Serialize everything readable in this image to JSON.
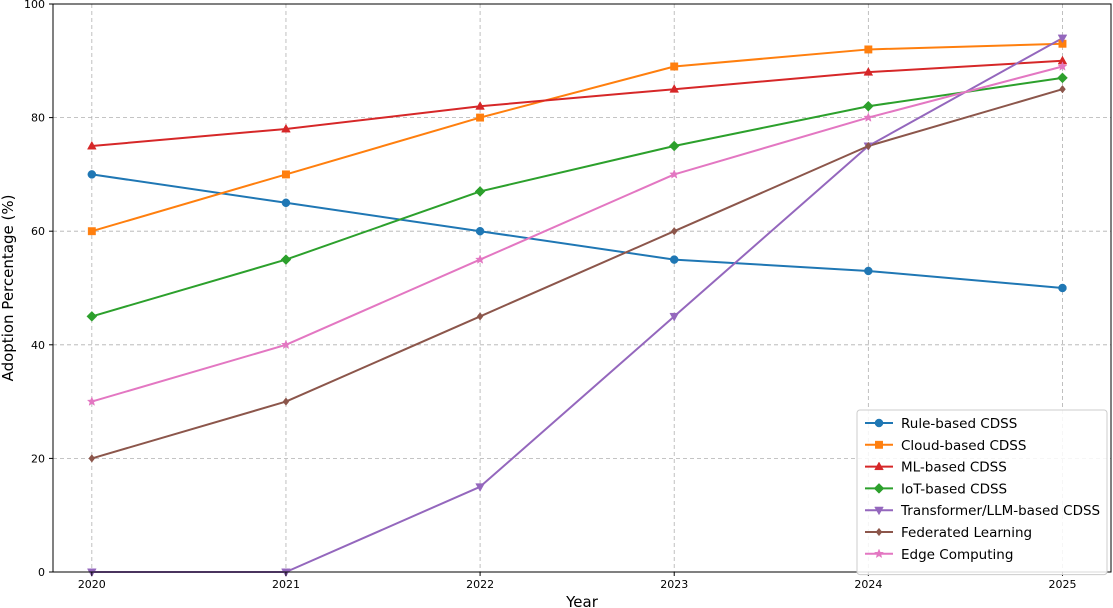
{
  "chart_data": {
    "type": "line",
    "title": "",
    "xlabel": "Year",
    "ylabel": "Adoption Percentage (%)",
    "x": [
      2020,
      2021,
      2022,
      2023,
      2024,
      2025
    ],
    "x_tick_labels": [
      "2020",
      "2021",
      "2022",
      "2023",
      "2024",
      "2025"
    ],
    "y_ticks": [
      0,
      20,
      40,
      60,
      80,
      100
    ],
    "y_tick_labels": [
      "0",
      "20",
      "40",
      "60",
      "80",
      "100"
    ],
    "ylim": [
      0,
      100
    ],
    "xlim": [
      2019.8,
      2025.25
    ],
    "grid": true,
    "legend_position": "lower-right",
    "series": [
      {
        "name": "Rule-based CDSS",
        "color": "#1f77b4",
        "marker": "circle",
        "values": [
          70,
          65,
          60,
          55,
          53,
          50
        ]
      },
      {
        "name": "Cloud-based CDSS",
        "color": "#ff7f0e",
        "marker": "square",
        "values": [
          60,
          70,
          80,
          89,
          92,
          93
        ]
      },
      {
        "name": "ML-based CDSS",
        "color": "#d62728",
        "marker": "triangle-up",
        "values": [
          75,
          78,
          82,
          85,
          88,
          90
        ]
      },
      {
        "name": "IoT-based CDSS",
        "color": "#2ca02c",
        "marker": "diamond",
        "values": [
          45,
          55,
          67,
          75,
          82,
          87
        ]
      },
      {
        "name": "Transformer/LLM-based CDSS",
        "color": "#9467bd",
        "marker": "triangle-down",
        "values": [
          0,
          0,
          15,
          45,
          75,
          94
        ]
      },
      {
        "name": "Federated Learning",
        "color": "#8c564b",
        "marker": "small-diamond",
        "values": [
          20,
          30,
          45,
          60,
          75,
          85
        ]
      },
      {
        "name": "Edge Computing",
        "color": "#e377c2",
        "marker": "star",
        "values": [
          30,
          40,
          55,
          70,
          80,
          89
        ]
      }
    ]
  }
}
